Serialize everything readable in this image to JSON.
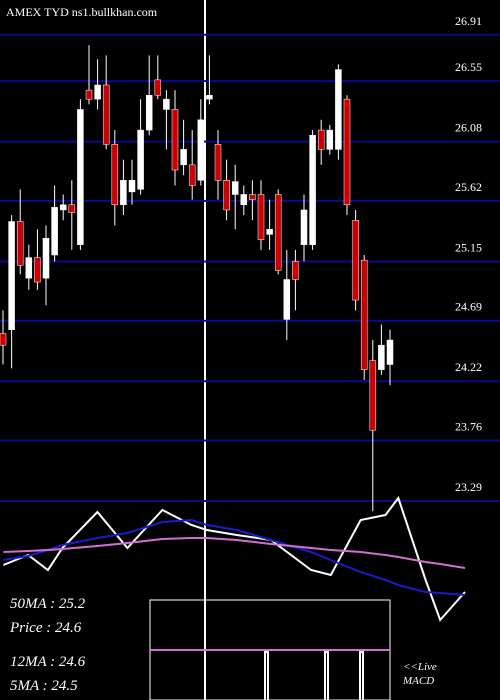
{
  "chart_data": {
    "type": "candlestick",
    "title": "AMEX  TYD ns1.bullkhan.com",
    "open": [
      24.59,
      24.62,
      25.46,
      25.02,
      25.18,
      25.02,
      25.2,
      25.55,
      25.59,
      25.28,
      26.48,
      26.41,
      26.52,
      26.06,
      25.59,
      25.69,
      25.71,
      26.17,
      26.56,
      26.33,
      26.33,
      25.9,
      25.9,
      25.78,
      26.41,
      26.06,
      25.78,
      25.67,
      25.59,
      25.67,
      25.67,
      25.36,
      25.67,
      24.7,
      25.15,
      25.28,
      25.28,
      26.17,
      26.02,
      26.02,
      26.41,
      25.47,
      25.16,
      24.38,
      24.31,
      24.35
    ],
    "high": [
      24.77,
      25.51,
      25.71,
      25.28,
      25.4,
      25.43,
      25.74,
      25.67,
      25.78,
      26.41,
      26.83,
      26.72,
      26.75,
      26.17,
      25.94,
      25.94,
      26.41,
      26.75,
      26.75,
      26.48,
      26.48,
      26.25,
      26.17,
      26.41,
      26.75,
      26.17,
      25.94,
      25.9,
      25.74,
      25.78,
      25.78,
      25.63,
      25.71,
      25.24,
      25.24,
      25.67,
      26.17,
      26.25,
      26.21,
      26.68,
      26.44,
      25.55,
      25.2,
      24.54,
      24.66,
      24.62
    ],
    "low": [
      24.35,
      24.32,
      25.05,
      24.93,
      24.93,
      24.81,
      25.15,
      25.47,
      25.24,
      25.24,
      26.37,
      26.33,
      26.02,
      25.43,
      25.51,
      25.59,
      25.67,
      26.13,
      26.41,
      26.02,
      25.74,
      25.82,
      25.63,
      25.74,
      26.37,
      25.63,
      25.47,
      25.4,
      25.51,
      25.47,
      25.24,
      25.24,
      25.05,
      24.54,
      24.77,
      25.15,
      25.24,
      25.9,
      25.98,
      25.94,
      25.51,
      24.77,
      24.23,
      23.21,
      24.27,
      24.19
    ],
    "close": [
      24.5,
      25.46,
      25.12,
      25.18,
      24.99,
      25.33,
      25.57,
      25.59,
      25.53,
      26.33,
      26.41,
      26.52,
      26.06,
      25.59,
      25.78,
      25.78,
      26.17,
      26.44,
      26.44,
      26.41,
      25.86,
      26.02,
      25.74,
      26.25,
      26.44,
      25.78,
      25.55,
      25.77,
      25.67,
      25.63,
      25.32,
      25.4,
      25.08,
      25.01,
      25.01,
      25.55,
      26.13,
      26.02,
      26.17,
      26.64,
      25.59,
      24.85,
      24.31,
      23.84,
      24.5,
      24.54
    ],
    "up_color": "#ffffff",
    "down_color": "#cc0000",
    "grid_color": "#0a0a8c",
    "ylim": [
      23.2,
      27.18
    ],
    "yticks": [
      26.91,
      26.55,
      26.08,
      25.62,
      25.15,
      24.69,
      24.22,
      23.76,
      23.29
    ],
    "grid": true,
    "indicator": {
      "x": [
        -0.3,
        2.6,
        4.9,
        6.6,
        10.7,
        14.2,
        18.3,
        21.7,
        23.5,
        27,
        31,
        35.7,
        38,
        41.5,
        44.4,
        45.9,
        49.1,
        50.8,
        53.7
      ],
      "xlim": [
        -0.35,
        57.8
      ],
      "ylim": [
        0,
        130
      ],
      "series": [
        {
          "color": "#ffffff",
          "values": [
            60,
            70,
            55,
            77,
            113,
            77,
            115,
            100,
            95,
            90,
            85,
            55,
            50,
            105,
            110,
            127,
            45,
            5,
            33
          ]
        },
        {
          "color": "#1a1acc",
          "values": [
            65,
            69,
            75,
            80,
            87,
            92,
            103,
            105,
            100,
            95,
            85,
            73,
            65,
            53,
            45,
            40,
            33,
            32,
            30
          ]
        },
        {
          "color": "#d070d0",
          "values": [
            73,
            74,
            75,
            76,
            79,
            82,
            86,
            87,
            87,
            85,
            81,
            77,
            75,
            73,
            70,
            68,
            63,
            61,
            57
          ]
        }
      ]
    },
    "stats": [
      "50MA : 25.2",
      "Price  : 24.6",
      "12MA : 24.6",
      "5MA : 24.5"
    ],
    "footer": [
      "<<Live",
      "MACD"
    ]
  }
}
